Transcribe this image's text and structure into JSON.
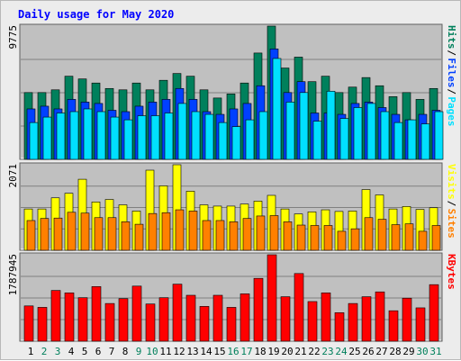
{
  "title": "Daily usage for May 2020",
  "colors": {
    "hits": "#00805c",
    "files": "#0040ff",
    "pages": "#00e0ff",
    "visits": "#ffff00",
    "sites": "#ff8000",
    "kbytes": "#ff0000",
    "weekend": "#00805c",
    "weekday": "#000000",
    "plot_bg": "#c0c0c0",
    "title": "#0000ff"
  },
  "chart_data": [
    {
      "type": "bar",
      "name": "hits-files-pages",
      "ymax_label": "9775",
      "ylim": [
        0,
        9775
      ],
      "right_labels": [
        {
          "text": "Hits",
          "color": "#00805c"
        },
        {
          "text": "Files",
          "color": "#0040ff"
        },
        {
          "text": "Pages",
          "color": "#00e0ff"
        }
      ],
      "series": [
        {
          "name": "Hits",
          "values": [
            4900,
            4900,
            5100,
            6100,
            5900,
            5600,
            5200,
            5100,
            5600,
            5100,
            5800,
            6300,
            6100,
            5100,
            4500,
            4800,
            5600,
            7800,
            9775,
            6700,
            7500,
            5700,
            6100,
            4900,
            5300,
            6000,
            5400,
            4600,
            4900,
            4400,
            5200
          ]
        },
        {
          "name": "Files",
          "values": [
            3700,
            3900,
            3700,
            4400,
            4200,
            4100,
            3600,
            3500,
            3900,
            4200,
            4400,
            5200,
            4400,
            3500,
            3300,
            3700,
            4100,
            5400,
            8100,
            4900,
            5700,
            3400,
            3400,
            3300,
            4100,
            4200,
            3800,
            3300,
            2900,
            3300,
            3600
          ]
        },
        {
          "name": "Pages",
          "values": [
            2700,
            3100,
            3400,
            3500,
            3700,
            3500,
            3100,
            2900,
            3200,
            3200,
            3400,
            4100,
            3500,
            3300,
            2700,
            2400,
            2900,
            3500,
            7400,
            4200,
            4900,
            2800,
            5000,
            3000,
            3800,
            4100,
            3500,
            2700,
            2900,
            2600,
            3500
          ]
        }
      ]
    },
    {
      "type": "bar",
      "name": "visits-sites",
      "ymax_label": "2071",
      "ylim": [
        0,
        2071
      ],
      "right_labels": [
        {
          "text": "Visits",
          "color": "#ffff00"
        },
        {
          "text": "Sites",
          "color": "#ff8000"
        }
      ],
      "series": [
        {
          "name": "Visits",
          "values": [
            1000,
            1000,
            1270,
            1380,
            1720,
            1170,
            1230,
            1100,
            950,
            1940,
            1560,
            2071,
            1430,
            1100,
            1070,
            1070,
            1120,
            1190,
            1330,
            1000,
            880,
            930,
            980,
            940,
            950,
            1470,
            1340,
            1000,
            1060,
            990,
            1030
          ]
        },
        {
          "name": "Sites",
          "values": [
            720,
            770,
            780,
            920,
            900,
            790,
            790,
            690,
            630,
            890,
            910,
            980,
            950,
            720,
            720,
            690,
            770,
            830,
            840,
            690,
            610,
            600,
            600,
            460,
            520,
            790,
            750,
            620,
            640,
            460,
            600
          ]
        }
      ]
    },
    {
      "type": "bar",
      "name": "kbytes",
      "ymax_label": "1787945",
      "ylim": [
        0,
        1787945
      ],
      "right_labels": [
        {
          "text": "KBytes",
          "color": "#ff0000"
        }
      ],
      "series": [
        {
          "name": "KBytes",
          "values": [
            730000,
            700000,
            1050000,
            1000000,
            900000,
            1130000,
            780000,
            880000,
            1140000,
            770000,
            900000,
            1180000,
            950000,
            720000,
            950000,
            700000,
            980000,
            1300000,
            1787945,
            920000,
            1400000,
            820000,
            1000000,
            590000,
            780000,
            920000,
            1020000,
            630000,
            890000,
            690000,
            1170000
          ]
        }
      ]
    }
  ],
  "x_labels": [
    "1",
    "2",
    "3",
    "4",
    "5",
    "6",
    "7",
    "8",
    "9",
    "10",
    "11",
    "12",
    "13",
    "14",
    "15",
    "16",
    "17",
    "18",
    "19",
    "20",
    "21",
    "22",
    "23",
    "24",
    "25",
    "26",
    "27",
    "28",
    "29",
    "30",
    "31"
  ],
  "weekend_days": [
    2,
    3,
    9,
    10,
    16,
    17,
    23,
    24,
    30,
    31
  ]
}
